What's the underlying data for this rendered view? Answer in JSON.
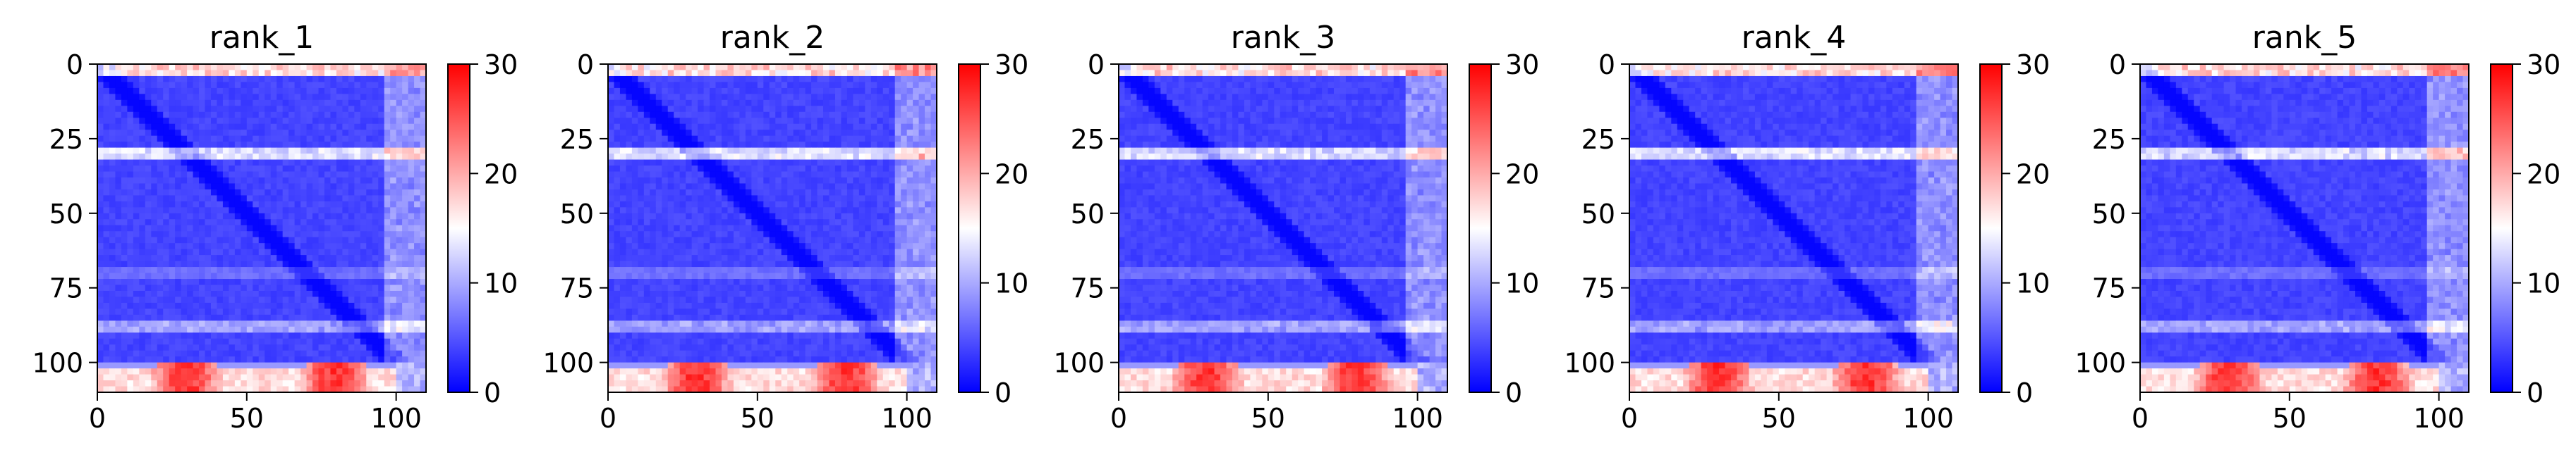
{
  "chart_data": [
    {
      "type": "heatmap",
      "title": "rank_1",
      "xticks": [
        "0",
        "50",
        "100"
      ],
      "yticks": [
        "0",
        "25",
        "50",
        "75",
        "100"
      ],
      "xlim": [
        0,
        110
      ],
      "ylim": [
        110,
        0
      ],
      "colorbar": {
        "ticks": [
          "0",
          "10",
          "20",
          "30"
        ],
        "range": [
          0,
          30
        ],
        "colormap": "bwr"
      }
    },
    {
      "type": "heatmap",
      "title": "rank_2",
      "xticks": [
        "0",
        "50",
        "100"
      ],
      "yticks": [
        "0",
        "25",
        "50",
        "75",
        "100"
      ],
      "xlim": [
        0,
        110
      ],
      "ylim": [
        110,
        0
      ],
      "colorbar": {
        "ticks": [
          "0",
          "10",
          "20",
          "30"
        ],
        "range": [
          0,
          30
        ],
        "colormap": "bwr"
      }
    },
    {
      "type": "heatmap",
      "title": "rank_3",
      "xticks": [
        "0",
        "50",
        "100"
      ],
      "yticks": [
        "0",
        "25",
        "50",
        "75",
        "100"
      ],
      "xlim": [
        0,
        110
      ],
      "ylim": [
        110,
        0
      ],
      "colorbar": {
        "ticks": [
          "0",
          "10",
          "20",
          "30"
        ],
        "range": [
          0,
          30
        ],
        "colormap": "bwr"
      }
    },
    {
      "type": "heatmap",
      "title": "rank_4",
      "xticks": [
        "0",
        "50",
        "100"
      ],
      "yticks": [
        "0",
        "25",
        "50",
        "75",
        "100"
      ],
      "xlim": [
        0,
        110
      ],
      "ylim": [
        110,
        0
      ],
      "colorbar": {
        "ticks": [
          "0",
          "10",
          "20",
          "30"
        ],
        "range": [
          0,
          30
        ],
        "colormap": "bwr"
      }
    },
    {
      "type": "heatmap",
      "title": "rank_5",
      "xticks": [
        "0",
        "50",
        "100"
      ],
      "yticks": [
        "0",
        "25",
        "50",
        "75",
        "100"
      ],
      "xlim": [
        0,
        110
      ],
      "ylim": [
        110,
        0
      ],
      "colorbar": {
        "ticks": [
          "0",
          "10",
          "20",
          "30"
        ],
        "range": [
          0,
          30
        ],
        "colormap": "bwr"
      }
    }
  ],
  "colors": {
    "low": "#0000ff",
    "mid": "#ffffff",
    "high": "#ff0000"
  }
}
